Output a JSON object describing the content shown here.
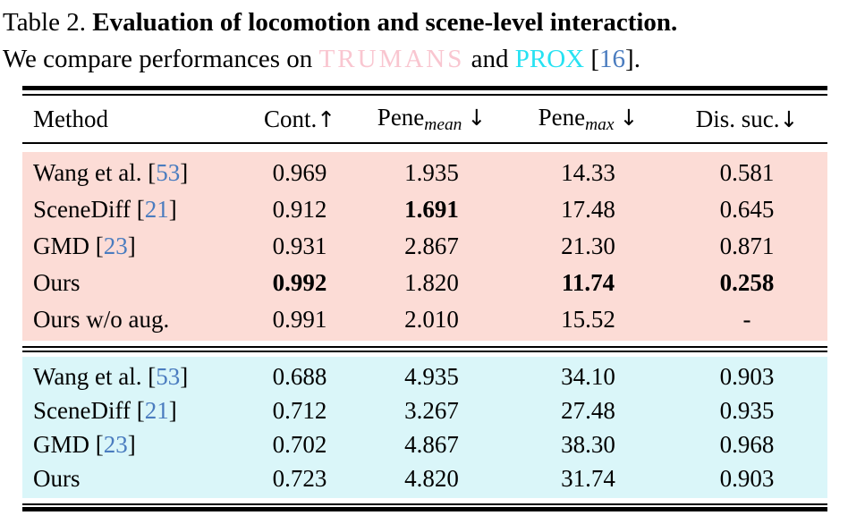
{
  "title": {
    "label": "Table 2.",
    "bold_text": "Evaluation of locomotion and scene-level interaction."
  },
  "caption": {
    "prefix": "We compare performances on ",
    "dataset_trumans": "TRUMANS",
    "conjunction": " and ",
    "dataset_prox": "PROX",
    "cite_open": " [",
    "cite_number": "16",
    "cite_close": "]."
  },
  "colors": {
    "pink_block": "#fcdcd6",
    "cyan_block": "#daf6f9",
    "trumans_text": "#f9c6d0",
    "prox_text": "#27e2f2",
    "citation_blue": "#4a7cbf"
  },
  "table": {
    "cite_format": {
      "open": " [",
      "close": "]"
    },
    "columns": [
      {
        "label": "Method"
      },
      {
        "label": "Cont.",
        "arrow": "↑"
      },
      {
        "label": "Pene",
        "sub": "mean",
        "arrow": "↓"
      },
      {
        "label": "Pene",
        "sub": "max",
        "arrow": "↓"
      },
      {
        "label": "Dis. suc.",
        "arrow": "↓"
      }
    ],
    "sections": [
      {
        "name": "trumans",
        "rows": [
          {
            "method": "Wang et al.",
            "cite": "53",
            "values": [
              "0.969",
              "1.935",
              "14.33",
              "0.581"
            ],
            "bold": [
              false,
              false,
              false,
              false
            ]
          },
          {
            "method": "SceneDiff",
            "cite": "21",
            "values": [
              "0.912",
              "1.691",
              "17.48",
              "0.645"
            ],
            "bold": [
              false,
              true,
              false,
              false
            ]
          },
          {
            "method": "GMD",
            "cite": "23",
            "values": [
              "0.931",
              "2.867",
              "21.30",
              "0.871"
            ],
            "bold": [
              false,
              false,
              false,
              false
            ]
          },
          {
            "method": "Ours",
            "cite": "",
            "values": [
              "0.992",
              "1.820",
              "11.74",
              "0.258"
            ],
            "bold": [
              true,
              false,
              true,
              true
            ]
          },
          {
            "method": "Ours w/o aug.",
            "cite": "",
            "values": [
              "0.991",
              "2.010",
              "15.52",
              "-"
            ],
            "bold": [
              false,
              false,
              false,
              false
            ]
          }
        ]
      },
      {
        "name": "prox",
        "rows": [
          {
            "method": "Wang et al.",
            "cite": "53",
            "values": [
              "0.688",
              "4.935",
              "34.10",
              "0.903"
            ],
            "bold": [
              false,
              false,
              false,
              false
            ]
          },
          {
            "method": "SceneDiff",
            "cite": "21",
            "values": [
              "0.712",
              "3.267",
              "27.48",
              "0.935"
            ],
            "bold": [
              false,
              false,
              false,
              false
            ]
          },
          {
            "method": "GMD",
            "cite": "23",
            "values": [
              "0.702",
              "4.867",
              "38.30",
              "0.968"
            ],
            "bold": [
              false,
              false,
              false,
              false
            ]
          },
          {
            "method": "Ours",
            "cite": "",
            "values": [
              "0.723",
              "4.820",
              "31.74",
              "0.903"
            ],
            "bold": [
              false,
              false,
              false,
              false
            ]
          }
        ]
      }
    ]
  }
}
